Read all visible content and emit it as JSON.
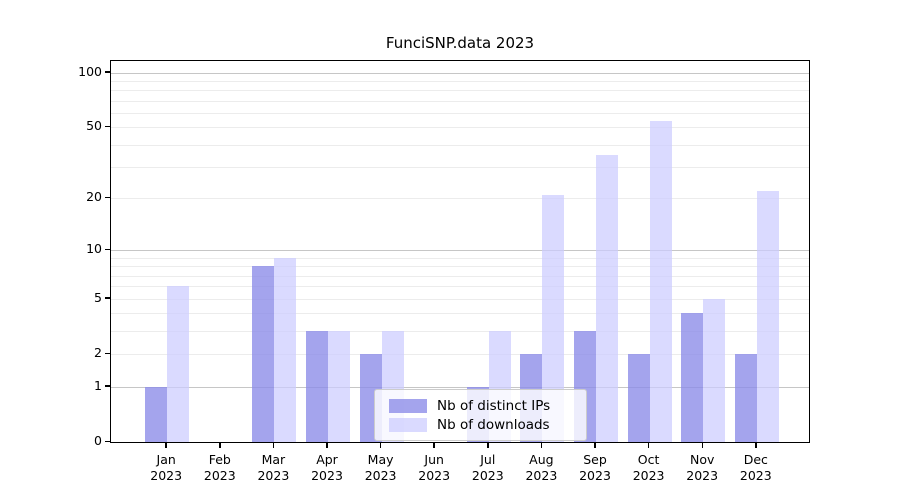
{
  "figure": {
    "title": "FunciSNP.data 2023",
    "background": "#ffffff"
  },
  "colors": {
    "ips": "rgba(138,138,232,0.78)",
    "downloads": "rgba(204,204,255,0.72)",
    "grid_major": "#c6c6c6",
    "grid_minor": "#ececec",
    "axis": "#000000",
    "text": "#000000",
    "legend_border": "#cccccc",
    "legend_bg": "rgba(255,255,255,0.8)"
  },
  "legend": {
    "items": [
      {
        "key": "ips",
        "label": "Nb of distinct IPs"
      },
      {
        "key": "downloads",
        "label": "Nb of downloads"
      }
    ]
  },
  "chart_data": {
    "type": "bar",
    "title": "FunciSNP.data 2023",
    "categories": [
      {
        "month": "Jan",
        "year": "2023"
      },
      {
        "month": "Feb",
        "year": "2023"
      },
      {
        "month": "Mar",
        "year": "2023"
      },
      {
        "month": "Apr",
        "year": "2023"
      },
      {
        "month": "May",
        "year": "2023"
      },
      {
        "month": "Jun",
        "year": "2023"
      },
      {
        "month": "Jul",
        "year": "2023"
      },
      {
        "month": "Aug",
        "year": "2023"
      },
      {
        "month": "Sep",
        "year": "2023"
      },
      {
        "month": "Oct",
        "year": "2023"
      },
      {
        "month": "Nov",
        "year": "2023"
      },
      {
        "month": "Dec",
        "year": "2023"
      }
    ],
    "series": [
      {
        "name": "Nb of distinct IPs",
        "values": [
          1,
          0,
          8,
          3,
          2,
          0,
          1,
          2,
          3,
          2,
          4,
          2
        ]
      },
      {
        "name": "Nb of downloads",
        "values": [
          6,
          0,
          9,
          3,
          3,
          0,
          3,
          21,
          35,
          54,
          5,
          22
        ]
      }
    ],
    "yscale": "log10(1+v)",
    "ylim": [
      0,
      115
    ],
    "yticks": [
      0,
      1,
      2,
      5,
      10,
      20,
      50,
      100
    ],
    "grid_major_at": [
      1,
      10,
      100
    ],
    "grid_minor_at": [
      2,
      3,
      4,
      5,
      6,
      7,
      8,
      9,
      20,
      30,
      40,
      50,
      60,
      70,
      80,
      90
    ],
    "legend_position": "inside-bottom-center",
    "xlabel": "",
    "ylabel": ""
  }
}
